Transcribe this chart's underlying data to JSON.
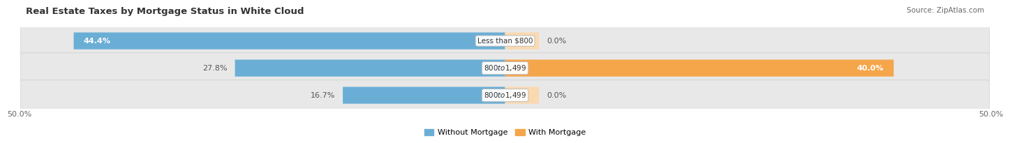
{
  "title": "Real Estate Taxes by Mortgage Status in White Cloud",
  "source": "Source: ZipAtlas.com",
  "rows": [
    {
      "label": "Less than $800",
      "without_mortgage": 44.4,
      "with_mortgage": 0.0
    },
    {
      "label": "$800 to $1,499",
      "without_mortgage": 27.8,
      "with_mortgage": 40.0
    },
    {
      "label": "$800 to $1,499",
      "without_mortgage": 16.7,
      "with_mortgage": 0.0
    }
  ],
  "x_min": -50.0,
  "x_max": 50.0,
  "x_tick_labels": [
    "50.0%",
    "50.0%"
  ],
  "color_without": "#6aaed6",
  "color_with": "#f5a54a",
  "color_without_light": "#c6d9ee",
  "color_with_light": "#fad9b0",
  "bar_height": 0.62,
  "bar_bg_color": "#e8e8e8",
  "legend_without": "Without Mortgage",
  "legend_with": "With Mortgage",
  "title_fontsize": 9.5,
  "source_fontsize": 7.5,
  "label_fontsize": 8,
  "value_fontsize": 8,
  "tick_fontsize": 8
}
